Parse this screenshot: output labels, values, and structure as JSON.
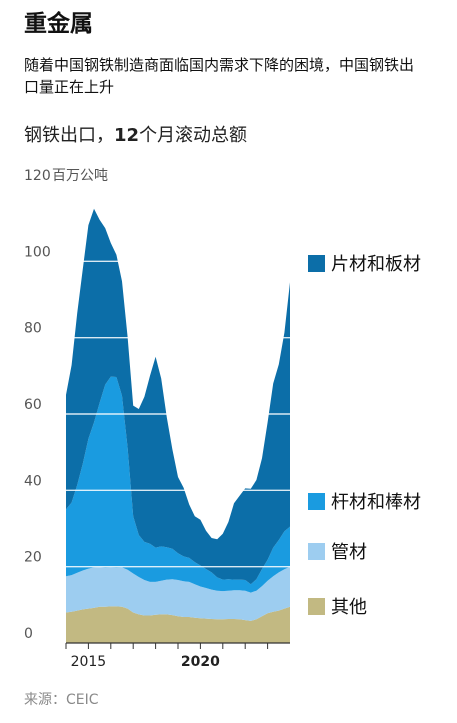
{
  "title": "重金属",
  "subtitle": "随着中国钢铁制造商面临国内需求下降的困境，中国钢铁出口量正在上升",
  "chart_title_prefix": "钢铁出口，",
  "chart_title_bold": "12",
  "chart_title_suffix": "个月滚动总额",
  "source": "来源：CEIC",
  "colors": {
    "flat": "#0c6ea8",
    "long": "#1a9be0",
    "pipe": "#9dcdf0",
    "other": "#c2b982",
    "grid": "#cfcfcf",
    "axis": "#333333"
  },
  "chart_data": {
    "type": "area",
    "stacked": true,
    "y_unit_label": "百万公吨",
    "ylim": [
      0,
      120
    ],
    "yticks": [
      "0",
      "20",
      "40",
      "60",
      "80",
      "100",
      "120"
    ],
    "xticks": [
      "2015",
      "2020"
    ],
    "xlim": [
      "2014-01",
      "2024-01"
    ],
    "x": [
      "2014-01",
      "2014-04",
      "2014-07",
      "2014-10",
      "2015-01",
      "2015-04",
      "2015-07",
      "2015-10",
      "2016-01",
      "2016-04",
      "2016-07",
      "2016-10",
      "2017-01",
      "2017-04",
      "2017-07",
      "2017-10",
      "2018-01",
      "2018-04",
      "2018-07",
      "2018-10",
      "2019-01",
      "2019-04",
      "2019-07",
      "2019-10",
      "2020-01",
      "2020-04",
      "2020-07",
      "2020-10",
      "2021-01",
      "2021-04",
      "2021-07",
      "2021-10",
      "2022-01",
      "2022-04",
      "2022-07",
      "2022-10",
      "2023-01",
      "2023-04",
      "2023-07",
      "2023-10",
      "2024-01"
    ],
    "series": [
      {
        "name": "其他",
        "color_key": "other",
        "values": [
          8,
          8.2,
          8.5,
          8.8,
          9,
          9.2,
          9.5,
          9.5,
          9.6,
          9.6,
          9.5,
          9,
          8,
          7.5,
          7.2,
          7.2,
          7.4,
          7.5,
          7.5,
          7.3,
          7,
          6.8,
          6.8,
          6.6,
          6.5,
          6.4,
          6.3,
          6.2,
          6.2,
          6.3,
          6.3,
          6.2,
          6,
          5.8,
          6.2,
          7,
          7.8,
          8.2,
          8.5,
          9,
          9.5
        ]
      },
      {
        "name": "管材",
        "color_key": "pipe",
        "values": [
          9.5,
          9.6,
          9.9,
          10.2,
          10.5,
          10.6,
          10.4,
          10.2,
          10.2,
          10.1,
          10.3,
          10.2,
          10.2,
          9.8,
          9.3,
          8.8,
          8.6,
          8.8,
          9.1,
          9.4,
          9.5,
          9.4,
          9.2,
          8.8,
          8.3,
          8,
          7.7,
          7.5,
          7.4,
          7.4,
          7.5,
          7.6,
          7.7,
          7.4,
          7.5,
          7.9,
          8.5,
          9.3,
          10,
          10.3,
          10.5
        ]
      },
      {
        "name": "杆材和棒材",
        "color_key": "long",
        "values": [
          17.5,
          19,
          23,
          28,
          34,
          38,
          43,
          48,
          50,
          50,
          45,
          32,
          15,
          11,
          10,
          10,
          9,
          9,
          8.5,
          8,
          7,
          6.5,
          6.3,
          5.8,
          5.5,
          5,
          4.5,
          3.5,
          3,
          3,
          2.8,
          2.8,
          2.8,
          2.2,
          3,
          4.5,
          5.5,
          7.5,
          8.5,
          10,
          10.5
        ]
      },
      {
        "name": "片材和板材",
        "color_key": "flat",
        "values": [
          30,
          36,
          45,
          51,
          56,
          56,
          48,
          41,
          35,
          32,
          30,
          29,
          29,
          33,
          38,
          44,
          50,
          44,
          34,
          26,
          20,
          18,
          14,
          12,
          12,
          10,
          9,
          10,
          12,
          15,
          20,
          22,
          24,
          25,
          26,
          29,
          36,
          43,
          46,
          52,
          64
        ]
      }
    ],
    "legend": [
      "片材和板材",
      "杆材和棒材",
      "管材",
      "其他"
    ]
  }
}
